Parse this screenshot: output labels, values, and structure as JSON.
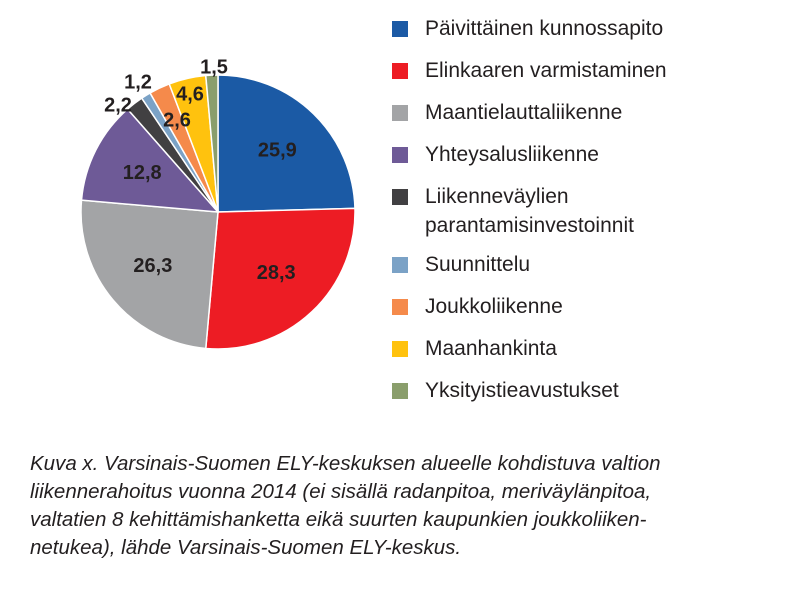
{
  "chart_data": {
    "type": "pie",
    "categories": [
      "Päivittäinen kunnossapito",
      "Elinkaaren varmistaminen",
      "Maantielauttaliikenne",
      "Yhteysalusliikenne",
      "Liikenneväylien parantamisinvestoinnit",
      "Suunnittelu",
      "Joukkoliikenne",
      "Maanhankinta",
      "Yksityistieavustukset"
    ],
    "values": [
      25.9,
      28.3,
      26.3,
      12.8,
      2.2,
      1.2,
      2.6,
      4.6,
      1.5
    ],
    "data_labels": [
      "25,9",
      "28,3",
      "26,3",
      "12,8",
      "2,2",
      "1,2",
      "2,6",
      "4,6",
      "1,5"
    ],
    "colors": [
      "#1b5aa5",
      "#ed1c24",
      "#a3a4a6",
      "#6e5a97",
      "#414042",
      "#7ba2c6",
      "#f58a4b",
      "#ffc20e",
      "#8a9e6c"
    ],
    "start": "12 o'clock",
    "direction": "clockwise",
    "legend_position": "right"
  },
  "legend": {
    "items": [
      {
        "label": "Päivittäinen kunnossapito"
      },
      {
        "label": "Elinkaaren varmistaminen"
      },
      {
        "label": "Maantielauttaliikenne"
      },
      {
        "label": "Yhteysalusliikenne"
      },
      {
        "label_line1": "Liikenneväylien",
        "label_line2": "parantamisinvestoinnit"
      },
      {
        "label": "Suunnittelu"
      },
      {
        "label": "Joukkoliikenne"
      },
      {
        "label": "Maanhankinta"
      },
      {
        "label": "Yksityistieavustukset"
      }
    ]
  },
  "caption": {
    "line1": "Kuva x. Varsinais-Suomen ELY-keskuksen alueelle kohdistuva valtion",
    "line2": "liikennerahoitus vuonna 2014 (ei sisällä radanpitoa, meriväylänpitoa,",
    "line3": "valtatien 8 kehittämishanketta eikä suurten kaupunkien joukkoliiken-",
    "line4": "netukea), lähde Varsinais-Suomen ELY-keskus."
  }
}
